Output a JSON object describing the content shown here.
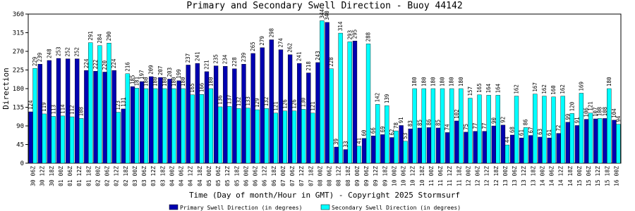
{
  "chart_data": {
    "type": "bar",
    "title": "Primary and Secondary Swell Direction - Buoy 44142",
    "y_label": "Direction",
    "x_label": "Time (Day of month/Hour in GMT) - Copyright 2025 Stormsurf",
    "categories": [
      "30 06Z",
      "30 12Z",
      "30 18Z",
      "01 00Z",
      "01 06Z",
      "01 12Z",
      "01 18Z",
      "02 00Z",
      "02 06Z",
      "02 12Z",
      "02 18Z",
      "03 00Z",
      "03 06Z",
      "03 12Z",
      "03 18Z",
      "04 00Z",
      "04 06Z",
      "04 12Z",
      "04 18Z",
      "05 00Z",
      "05 06Z",
      "05 12Z",
      "05 18Z",
      "06 00Z",
      "06 06Z",
      "06 12Z",
      "06 18Z",
      "07 00Z",
      "07 06Z",
      "07 12Z",
      "07 18Z",
      "08 00Z",
      "08 06Z",
      "08 12Z",
      "08 18Z",
      "09 00Z",
      "09 06Z",
      "09 12Z",
      "09 18Z",
      "10 00Z",
      "10 06Z",
      "10 12Z",
      "10 18Z",
      "11 00Z",
      "11 06Z",
      "11 12Z",
      "11 18Z",
      "12 00Z",
      "12 06Z",
      "12 12Z",
      "12 18Z",
      "13 00Z",
      "13 06Z",
      "13 12Z",
      "13 18Z",
      "14 00Z",
      "14 06Z",
      "14 12Z",
      "14 18Z",
      "15 00Z",
      "15 06Z",
      "15 12Z",
      "15 18Z",
      "16 00Z"
    ],
    "series": [
      {
        "name": "Primary Swell Direction (in degrees)",
        "color": "#0000b0",
        "values": [
          124,
          239,
          248,
          253,
          252,
          252,
          224,
          222,
          220,
          224,
          131,
          185,
          197,
          209,
          207,
          203,
          199,
          237,
          241,
          221,
          235,
          234,
          228,
          239,
          265,
          279,
          298,
          274,
          262,
          241,
          218,
          243,
          340,
          39,
          33,
          295,
          60,
          66,
          69,
          62,
          91,
          83,
          85,
          86,
          85,
          74,
          102,
          75,
          77,
          77,
          90,
          92,
          68,
          61,
          67,
          63,
          61,
          72,
          99,
          91,
          106,
          107,
          108,
          104
        ]
      },
      {
        "name": "Secondary Swell Direction (in degrees)",
        "color": "#00ffff",
        "values": [
          229,
          119,
          113,
          114,
          112,
          108,
          291,
          284,
          290,
          123,
          216,
          181,
          180,
          180,
          180,
          180,
          180,
          165,
          166,
          180,
          136,
          137,
          132,
          133,
          129,
          132,
          121,
          126,
          126,
          130,
          121,
          344,
          228,
          314,
          293,
          41,
          288,
          142,
          139,
          78,
          53,
          180,
          180,
          180,
          180,
          180,
          180,
          157,
          165,
          164,
          164,
          44,
          162,
          86,
          167,
          162,
          160,
          162,
          120,
          169,
          121,
          108,
          180,
          94
        ]
      }
    ],
    "ylim": [
      0,
      360
    ],
    "yticks": [
      0,
      45,
      90,
      135,
      180,
      225,
      270,
      315,
      360
    ]
  }
}
